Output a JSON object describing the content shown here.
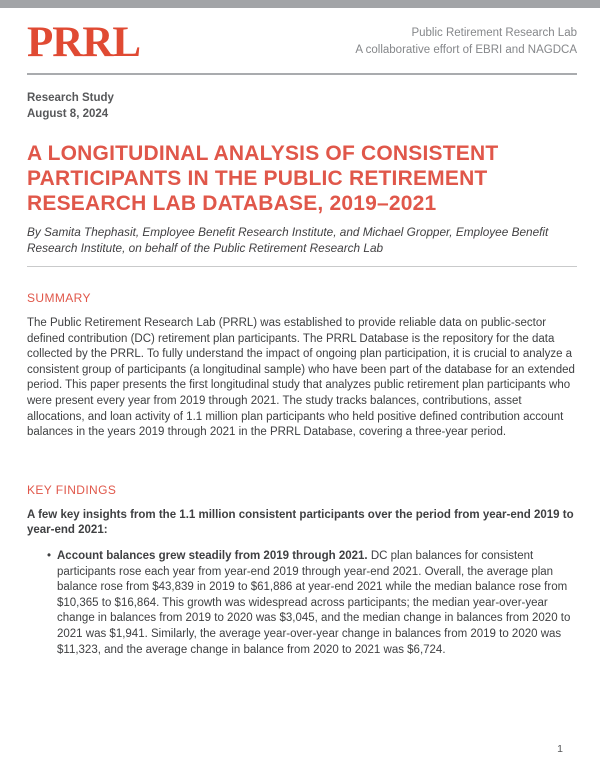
{
  "header": {
    "logo": "PRRL",
    "org_name": "Public Retirement Research Lab",
    "tagline": "A collaborative effort of EBRI and NAGDCA"
  },
  "meta": {
    "doc_type": "Research Study",
    "date": "August 8, 2024"
  },
  "title": "A LONGITUDINAL ANALYSIS OF CONSISTENT PARTICIPANTS IN THE PUBLIC RETIREMENT RESEARCH LAB DATABASE, 2019–2021",
  "byline": "By Samita Thephasit, Employee Benefit Research Institute, and Michael Gropper, Employee Benefit Research Institute, on behalf of the Public Retirement Research Lab",
  "summary": {
    "heading": "SUMMARY",
    "body": "The Public Retirement Research Lab (PRRL) was established to provide reliable data on public-sector defined contribution (DC) retirement plan participants. The PRRL Database is the repository for the data collected by the PRRL. To fully understand the impact of ongoing plan participation, it is crucial to analyze a consistent group of participants (a longitudinal sample) who have been part of the database for an extended period. This paper presents the first longitudinal study that analyzes public retirement plan participants who were present every year from 2019 through 2021. The study tracks balances, contributions, asset allocations, and loan activity of 1.1 million plan participants who held positive defined contribution account balances in the years 2019 through 2021 in the PRRL Database, covering a three-year period."
  },
  "key_findings": {
    "heading": "KEY FINDINGS",
    "intro": "A few key insights from the 1.1 million consistent participants over the period from year-end 2019 to year-end 2021:",
    "bullets": [
      {
        "lead": "Account balances grew steadily from 2019 through 2021.",
        "text": "DC plan balances for consistent participants rose each year from year-end 2019 through year-end 2021. Overall, the average plan balance rose from $43,839 in 2019 to $61,886 at year-end 2021 while the median balance rose from $10,365 to $16,864. This growth was widespread across participants; the median year-over-year change in balances from 2019 to 2020 was $3,045, and the median change in balances from 2020 to 2021 was $1,941. Similarly, the average year-over-year change in balances from 2019 to 2020 was $11,323, and the average change in balance from 2020 to 2021 was $6,724."
      }
    ]
  },
  "page_number": "1",
  "colors": {
    "brand_red": "#E04A33",
    "accent_red": "#E0574A",
    "body_text": "#3F4042",
    "muted_gray": "#85878A",
    "topbar_gray": "#A2A4A7"
  }
}
